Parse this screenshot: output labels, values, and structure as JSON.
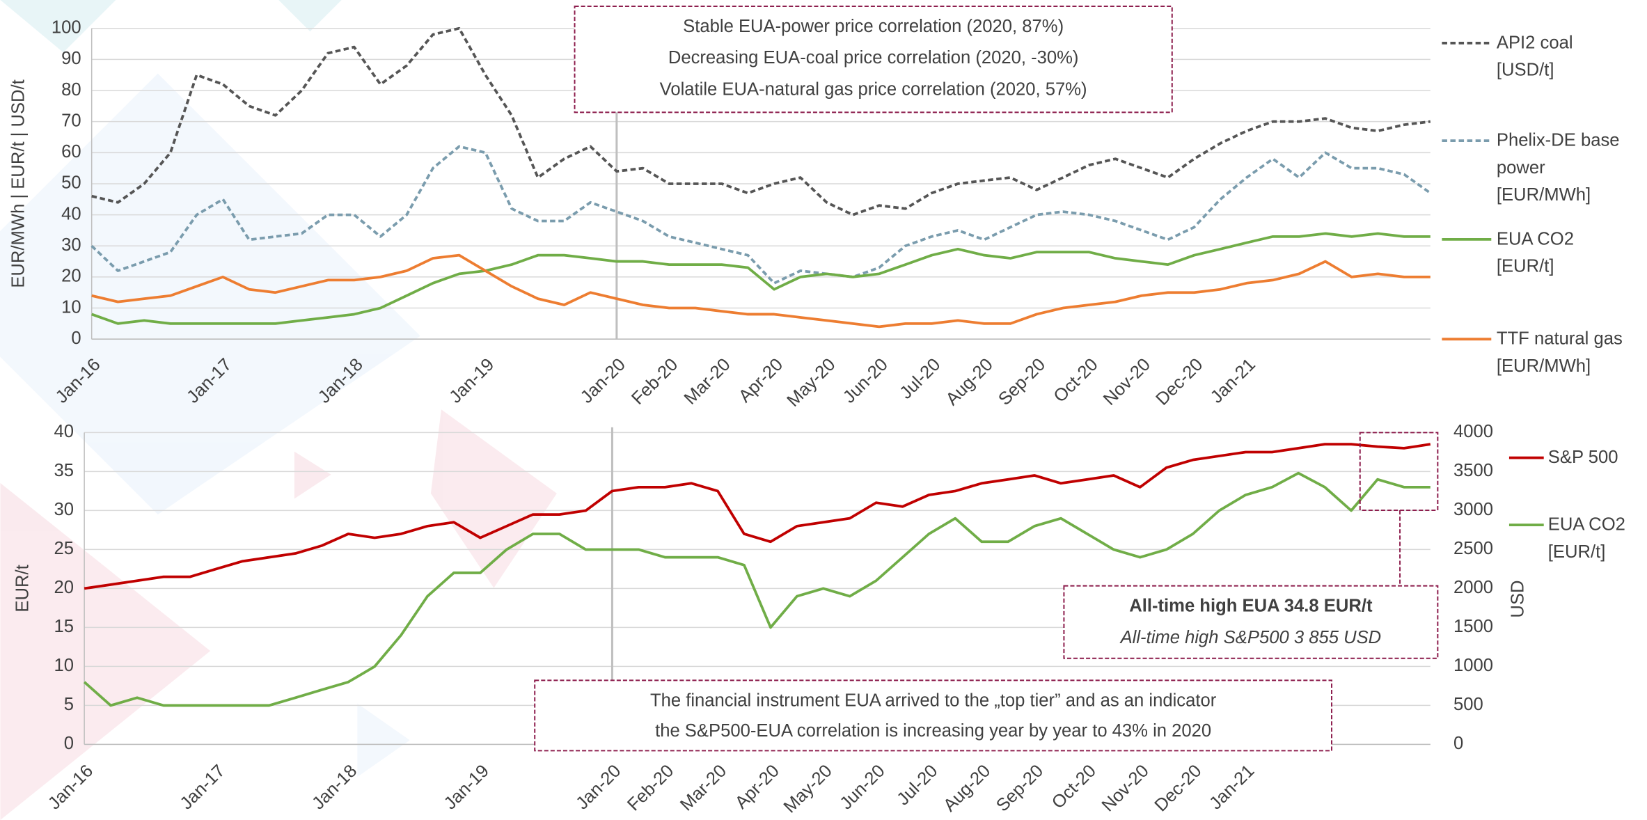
{
  "chart_data": [
    {
      "type": "line",
      "grid": true,
      "ylim": [
        0,
        100
      ],
      "yticks": [
        0,
        10,
        20,
        30,
        40,
        50,
        60,
        70,
        80,
        90,
        100
      ],
      "y_label": "EUR/MWh | EUR/t | USD/t",
      "categories": [
        "Jan-16",
        null,
        null,
        null,
        null,
        "Jan-17",
        null,
        null,
        null,
        null,
        "Jan-18",
        null,
        null,
        null,
        null,
        "Jan-19",
        null,
        null,
        null,
        null,
        "Jan-20",
        null,
        "Feb-20",
        null,
        "Mar-20",
        null,
        "Apr-20",
        null,
        "May-20",
        null,
        "Jun-20",
        null,
        "Jul-20",
        null,
        "Aug-20",
        null,
        "Sep-20",
        null,
        "Oct-20",
        null,
        "Nov-20",
        null,
        "Dec-20",
        null,
        "Jan-21",
        null,
        null,
        null,
        null,
        null,
        null,
        null
      ],
      "series": [
        {
          "name": "API2 coal [USD/t]",
          "color": "#555555",
          "dashed": true,
          "values": [
            46,
            44,
            50,
            60,
            85,
            82,
            75,
            72,
            80,
            92,
            94,
            82,
            88,
            98,
            100,
            85,
            72,
            52,
            58,
            62,
            54,
            55,
            50,
            50,
            50,
            47,
            50,
            52,
            44,
            40,
            43,
            42,
            47,
            50,
            51,
            52,
            48,
            52,
            56,
            58,
            55,
            52,
            58,
            63,
            67,
            70,
            70,
            71,
            68,
            67,
            69,
            70
          ]
        },
        {
          "name": "Phelix-DE base power [EUR/MWh]",
          "color": "#7a9cad",
          "dashed": true,
          "values": [
            30,
            22,
            25,
            28,
            40,
            45,
            32,
            33,
            34,
            40,
            40,
            33,
            40,
            55,
            62,
            60,
            42,
            38,
            38,
            44,
            41,
            38,
            33,
            31,
            29,
            27,
            18,
            22,
            21,
            20,
            23,
            30,
            33,
            35,
            32,
            36,
            40,
            41,
            40,
            38,
            35,
            32,
            36,
            45,
            52,
            58,
            52,
            60,
            55,
            55,
            53,
            47
          ]
        },
        {
          "name": "EUA CO2 [EUR/t]",
          "color": "#70ad47",
          "dashed": false,
          "values": [
            8,
            5,
            6,
            5,
            5,
            5,
            5,
            5,
            6,
            7,
            8,
            10,
            14,
            18,
            21,
            22,
            24,
            27,
            27,
            26,
            25,
            25,
            24,
            24,
            24,
            23,
            16,
            20,
            21,
            20,
            21,
            24,
            27,
            29,
            27,
            26,
            28,
            28,
            28,
            26,
            25,
            24,
            27,
            29,
            31,
            33,
            33,
            34,
            33,
            34,
            33,
            33
          ]
        },
        {
          "name": "TTF natural gas [EUR/MWh]",
          "color": "#ed7d31",
          "dashed": false,
          "values": [
            14,
            12,
            13,
            14,
            17,
            20,
            16,
            15,
            17,
            19,
            19,
            20,
            22,
            26,
            27,
            22,
            17,
            13,
            11,
            15,
            13,
            11,
            10,
            10,
            9,
            8,
            8,
            7,
            6,
            5,
            4,
            5,
            5,
            6,
            5,
            5,
            8,
            10,
            11,
            12,
            14,
            15,
            15,
            16,
            18,
            19,
            21,
            25,
            20,
            21,
            20,
            20
          ]
        }
      ],
      "annotations": [
        {
          "lines": [
            "Stable EUA-power price correlation (2020, 87%)",
            "Decreasing EUA-coal price correlation (2020, -30%)",
            "Volatile EUA-natural gas price correlation (2020, 57%)"
          ]
        }
      ]
    },
    {
      "type": "line",
      "grid": true,
      "ylim": [
        0,
        40
      ],
      "yticks": [
        0,
        5,
        10,
        15,
        20,
        25,
        30,
        35,
        40
      ],
      "y2lim": [
        0,
        4000
      ],
      "y2ticks": [
        0,
        500,
        1000,
        1500,
        2000,
        2500,
        3000,
        3500,
        4000
      ],
      "y_label": "EUR/t",
      "y2_label": "USD",
      "categories": [
        "Jan-16",
        null,
        null,
        null,
        null,
        "Jan-17",
        null,
        null,
        null,
        null,
        "Jan-18",
        null,
        null,
        null,
        null,
        "Jan-19",
        null,
        null,
        null,
        null,
        "Jan-20",
        null,
        "Feb-20",
        null,
        "Mar-20",
        null,
        "Apr-20",
        null,
        "May-20",
        null,
        "Jun-20",
        null,
        "Jul-20",
        null,
        "Aug-20",
        null,
        "Sep-20",
        null,
        "Oct-20",
        null,
        "Nov-20",
        null,
        "Dec-20",
        null,
        "Jan-21",
        null,
        null,
        null,
        null,
        null,
        null,
        null
      ],
      "series": [
        {
          "name": "S&P 500",
          "color": "#c00000",
          "dashed": false,
          "axis": "y2",
          "values": [
            2000,
            2050,
            2100,
            2150,
            2150,
            2250,
            2350,
            2400,
            2450,
            2550,
            2700,
            2650,
            2700,
            2800,
            2850,
            2650,
            2800,
            2950,
            2950,
            3000,
            3250,
            3300,
            3300,
            3350,
            3250,
            2700,
            2600,
            2800,
            2850,
            2900,
            3100,
            3050,
            3200,
            3250,
            3350,
            3400,
            3450,
            3350,
            3400,
            3450,
            3300,
            3550,
            3650,
            3700,
            3750,
            3750,
            3800,
            3850,
            3850,
            3820,
            3800,
            3850
          ]
        },
        {
          "name": "EUA CO2 [EUR/t]",
          "color": "#70ad47",
          "dashed": false,
          "values": [
            8,
            5,
            6,
            5,
            5,
            5,
            5,
            5,
            6,
            7,
            8,
            10,
            14,
            19,
            22,
            22,
            25,
            27,
            27,
            25,
            25,
            25,
            24,
            24,
            24,
            23,
            15,
            19,
            20,
            19,
            21,
            24,
            27,
            29,
            26,
            26,
            28,
            29,
            27,
            25,
            24,
            25,
            27,
            30,
            32,
            33,
            34.8,
            33,
            30,
            34,
            33,
            33
          ]
        }
      ],
      "annotations": [
        {
          "lines": [
            "The financial instrument EUA arrived to the „top tier” and as an indicator",
            "the S&P500-EUA correlation is increasing year by year to 43% in 2020"
          ]
        },
        {
          "lines": [
            "All-time high EUA 34.8 EUR/t",
            "All-time high S&P500 3 855 USD"
          ]
        }
      ]
    }
  ]
}
